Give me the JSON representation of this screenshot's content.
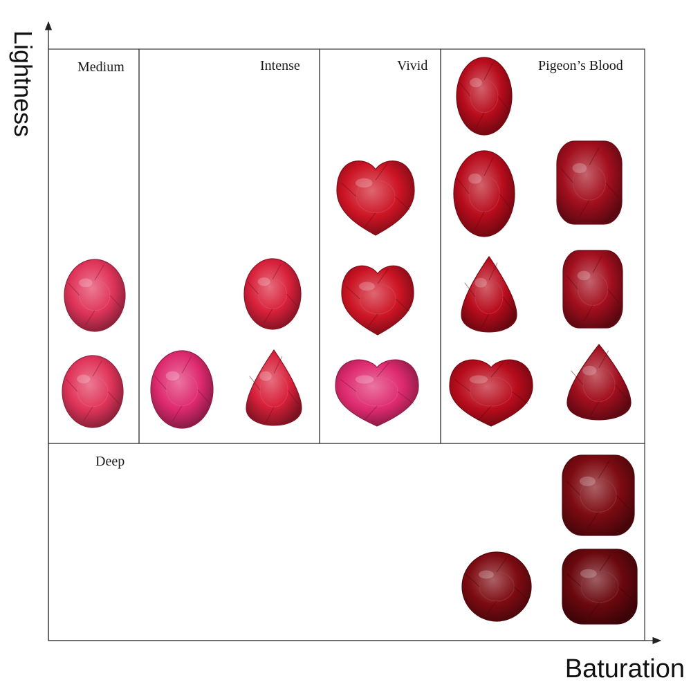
{
  "axes": {
    "y_title": "Lightness",
    "x_title": "Baturation"
  },
  "zones": {
    "medium": "Medium",
    "intense": "Intense",
    "vivid": "Vivid",
    "pigeons_blood": "Pigeon’s Blood",
    "deep": "Deep"
  },
  "colors": {
    "medium_pink": "#e0345a",
    "hot_pink": "#de2a6e",
    "intense_red": "#d8203a",
    "vivid_red": "#cc1424",
    "pigeon_red": "#b80c1c",
    "pigeon_dark": "#a30f1e",
    "deep_red": "#7d0b12",
    "deep_darkest": "#6a080e"
  },
  "gems": [
    {
      "zone": "medium",
      "shape": "oval",
      "color": "medium_pink"
    },
    {
      "zone": "medium",
      "shape": "oval",
      "color": "medium_pink"
    },
    {
      "zone": "intense",
      "shape": "oval",
      "color": "hot_pink"
    },
    {
      "zone": "intense",
      "shape": "oval",
      "color": "intense_red"
    },
    {
      "zone": "intense",
      "shape": "pear",
      "color": "intense_red"
    },
    {
      "zone": "vivid",
      "shape": "heart",
      "color": "vivid_red"
    },
    {
      "zone": "vivid",
      "shape": "heart",
      "color": "vivid_red"
    },
    {
      "zone": "vivid",
      "shape": "heart",
      "color": "hot_pink"
    },
    {
      "zone": "pigeons_blood",
      "shape": "oval",
      "color": "pigeon_red"
    },
    {
      "zone": "pigeons_blood",
      "shape": "oval",
      "color": "pigeon_red"
    },
    {
      "zone": "pigeons_blood",
      "shape": "cushion",
      "color": "pigeon_dark"
    },
    {
      "zone": "pigeons_blood",
      "shape": "pear",
      "color": "pigeon_red"
    },
    {
      "zone": "pigeons_blood",
      "shape": "cushion",
      "color": "pigeon_dark"
    },
    {
      "zone": "pigeons_blood",
      "shape": "heart",
      "color": "pigeon_red"
    },
    {
      "zone": "pigeons_blood",
      "shape": "pear",
      "color": "pigeon_dark"
    },
    {
      "zone": "deep",
      "shape": "cushion",
      "color": "deep_red"
    },
    {
      "zone": "deep",
      "shape": "round",
      "color": "deep_red"
    },
    {
      "zone": "deep",
      "shape": "cushion",
      "color": "deep_darkest"
    }
  ]
}
